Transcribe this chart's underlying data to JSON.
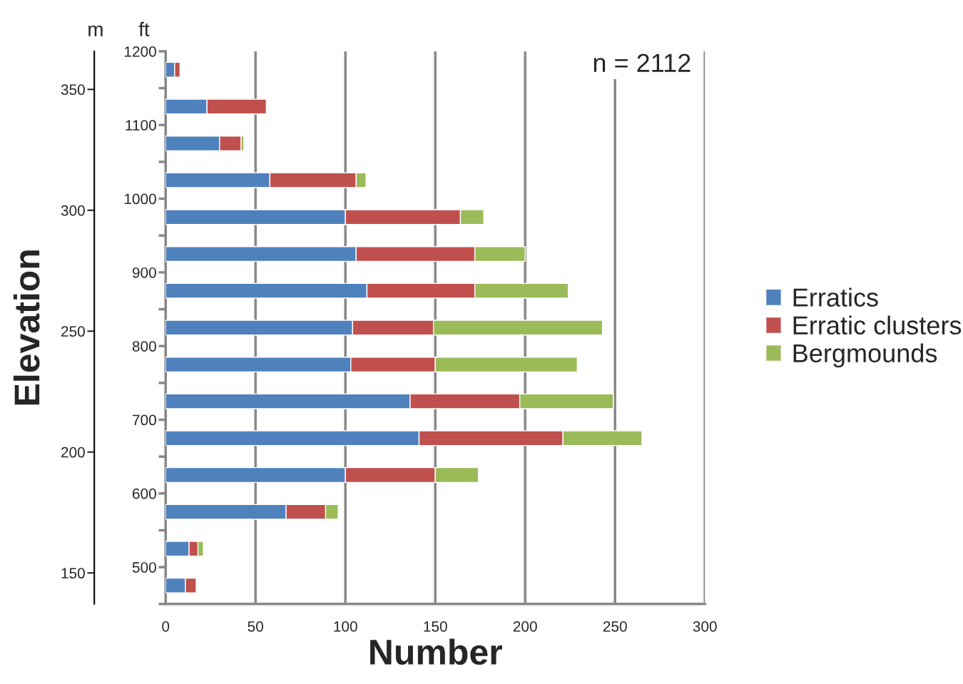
{
  "chart_data": {
    "type": "bar",
    "orientation": "horizontal",
    "stacked": true,
    "xlabel": "Number",
    "ylabel": "ft",
    "y2label": "Elevation",
    "x": [
      1175,
      1125,
      1075,
      1025,
      975,
      925,
      875,
      825,
      775,
      725,
      675,
      625,
      575,
      525,
      475
    ],
    "series": [
      {
        "name": "Erratics",
        "color": "#4f81bd",
        "values": [
          5,
          23,
          30,
          58,
          100,
          106,
          112,
          104,
          103,
          136,
          141,
          100,
          67,
          13,
          11
        ]
      },
      {
        "name": "Erratic clusters",
        "color": "#c0504d",
        "values": [
          3,
          33,
          12,
          48,
          64,
          66,
          60,
          45,
          47,
          61,
          80,
          50,
          22,
          5,
          6
        ]
      },
      {
        "name": "Bergmounds",
        "color": "#9bbb59",
        "values": [
          null,
          null,
          1.5,
          5.5,
          13,
          28,
          52,
          94,
          79,
          52,
          44,
          24,
          7,
          3,
          null
        ]
      }
    ],
    "xlim": [
      0,
      300
    ],
    "xticks": [
      0,
      50,
      100,
      150,
      200,
      250,
      300
    ],
    "ylim": [
      450,
      1200
    ],
    "yticks": [
      {
        "value": 450,
        "label": null
      },
      500,
      {
        "value": 550,
        "label": null
      },
      600,
      {
        "value": 650,
        "label": null
      },
      700,
      {
        "value": 750,
        "label": null
      },
      800,
      {
        "value": 850,
        "label": null
      },
      900,
      {
        "value": 950,
        "label": null
      },
      1000,
      {
        "value": 1050,
        "label": null
      },
      1100,
      {
        "value": 1150,
        "label": null
      },
      1200
    ],
    "y2lim": [
      137.16,
      365.76
    ],
    "y2ticks": [
      150,
      200,
      250,
      300,
      350
    ],
    "annotations": [
      "n = 2112",
      "m"
    ],
    "grid": "x",
    "legend": "right"
  }
}
